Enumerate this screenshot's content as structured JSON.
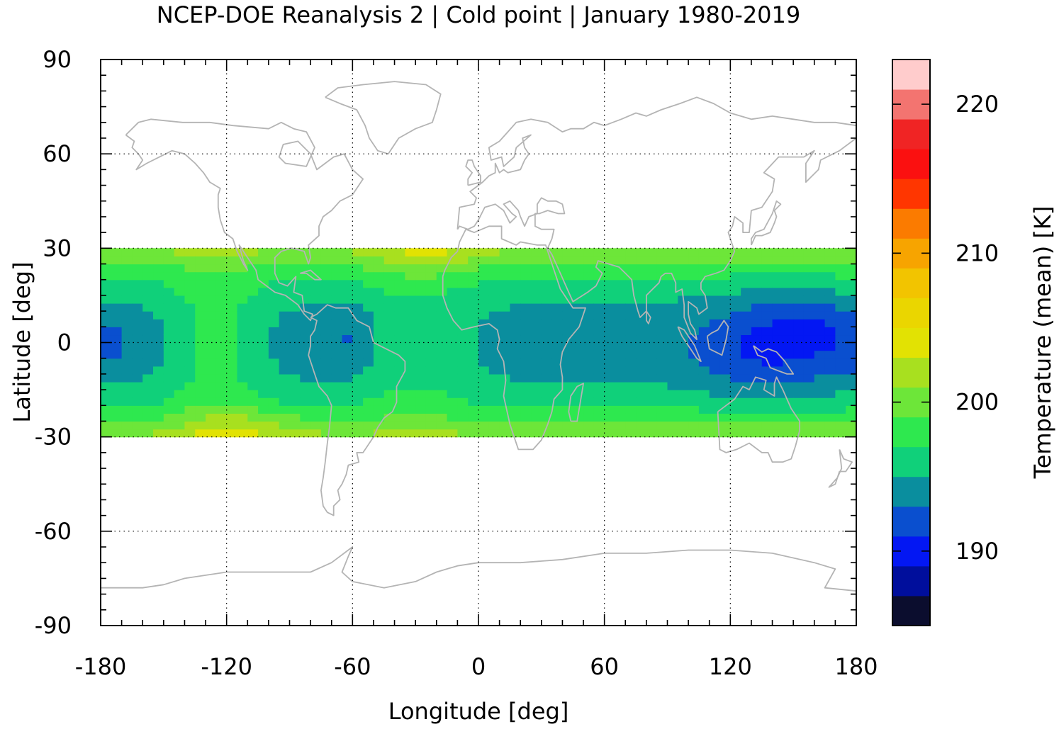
{
  "chart_data": {
    "type": "heatmap",
    "title": "NCEP-DOE Reanalysis 2 | Cold point | January 1980-2019",
    "xlabel": "Longitude [deg]",
    "ylabel": "Latitude [deg]",
    "colorbar_label": "Temperature (mean) [K]",
    "xlim": [
      -180,
      180
    ],
    "ylim": [
      -90,
      90
    ],
    "xticks": [
      "-180",
      "-120",
      "-60",
      "0",
      "60",
      "120",
      "180"
    ],
    "yticks": [
      "90",
      "60",
      "30",
      "0",
      "-30",
      "-60",
      "-90"
    ],
    "colorbar_range": [
      185,
      223
    ],
    "colorbar_ticks": [
      "220",
      "210",
      "200",
      "190"
    ],
    "colorbar_levels": [
      {
        "from": 185,
        "to": 187,
        "color": "#0b0d2e"
      },
      {
        "from": 187,
        "to": 189,
        "color": "#000e9c"
      },
      {
        "from": 189,
        "to": 191,
        "color": "#0317f3"
      },
      {
        "from": 191,
        "to": 193,
        "color": "#0a4fcf"
      },
      {
        "from": 193,
        "to": 195,
        "color": "#0a8e9e"
      },
      {
        "from": 195,
        "to": 197,
        "color": "#10d07a"
      },
      {
        "from": 197,
        "to": 199,
        "color": "#2ee84f"
      },
      {
        "from": 199,
        "to": 201,
        "color": "#6de639"
      },
      {
        "from": 201,
        "to": 203,
        "color": "#a8e01f"
      },
      {
        "from": 203,
        "to": 205,
        "color": "#e2e203"
      },
      {
        "from": 205,
        "to": 207,
        "color": "#ead600"
      },
      {
        "from": 207,
        "to": 209,
        "color": "#f2c400"
      },
      {
        "from": 209,
        "to": 211,
        "color": "#f7a400"
      },
      {
        "from": 211,
        "to": 213,
        "color": "#fb7b00"
      },
      {
        "from": 213,
        "to": 215,
        "color": "#ff3600"
      },
      {
        "from": 215,
        "to": 217,
        "color": "#fb1010"
      },
      {
        "from": 217,
        "to": 219,
        "color": "#f02424"
      },
      {
        "from": 219,
        "to": 221,
        "color": "#f37470"
      },
      {
        "from": 221,
        "to": 223,
        "color": "#ffcccc"
      }
    ],
    "data_lat_range": [
      -30,
      30
    ],
    "grid": true,
    "coastline_color": "#b4b4b4"
  }
}
